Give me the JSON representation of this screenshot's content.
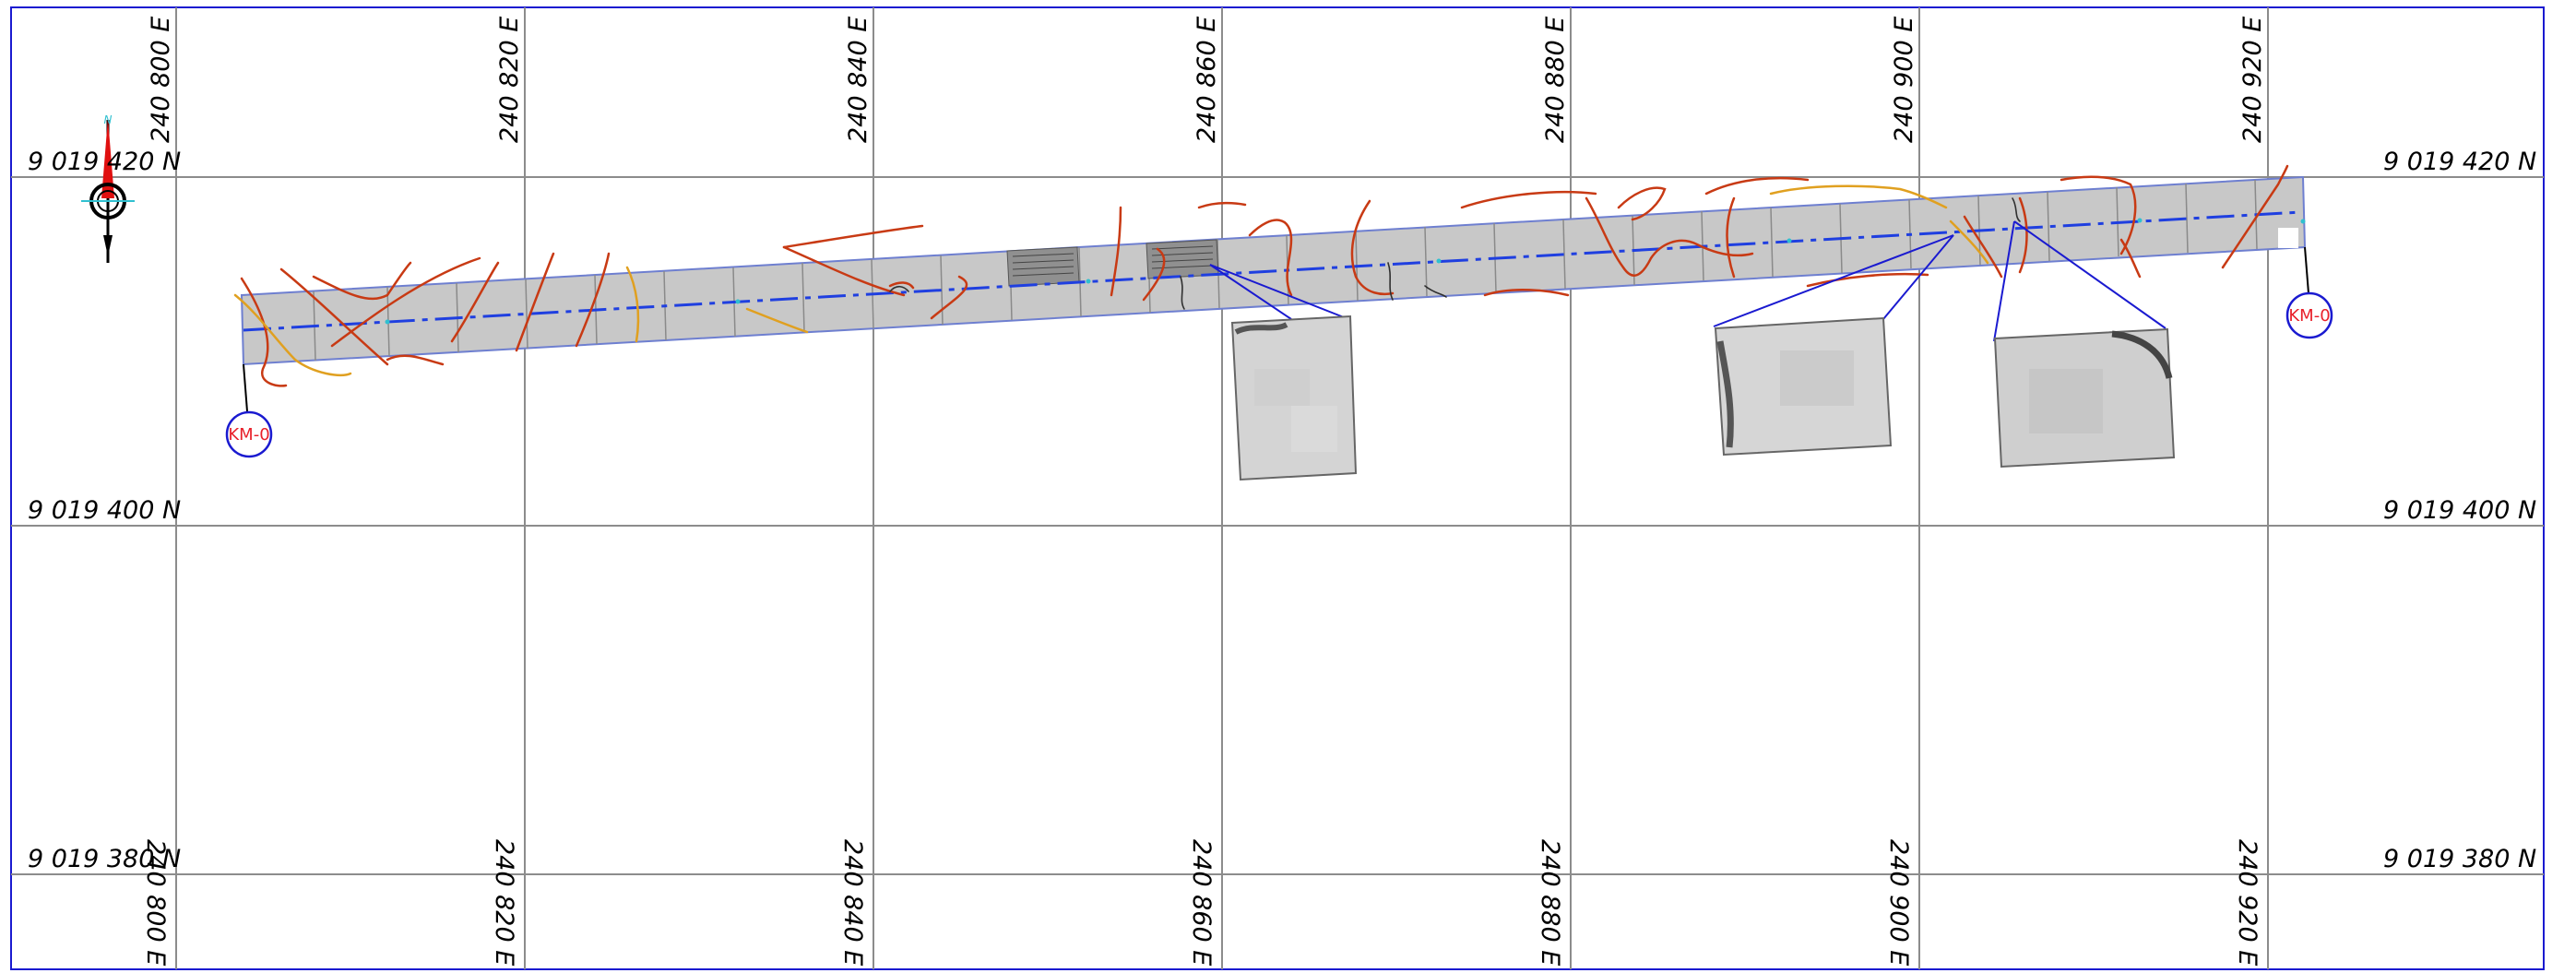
{
  "grid": {
    "eastings": [
      "240 800 E",
      "240 820 E",
      "240 840 E",
      "240 860 E",
      "240 880 E",
      "240 900 E",
      "240 920 E"
    ],
    "northings": [
      "9 019 420 N",
      "9 019 400 N",
      "9 019 380 N"
    ]
  },
  "markers": {
    "start_label": "KM-0",
    "end_label": "KM-0"
  },
  "north_arrow": {
    "letter": "N",
    "icon": "north-arrow-icon"
  },
  "colors": {
    "frame": "#1a1ad0",
    "grid": "#8c8c8c",
    "strip_fill": "#c8c8c8",
    "centerline": "#1f3fe0",
    "crack_primary": "#c83a14",
    "crack_secondary": "#e0a020",
    "marker": "#1a1ad0",
    "marker_text": "#e8202a"
  }
}
